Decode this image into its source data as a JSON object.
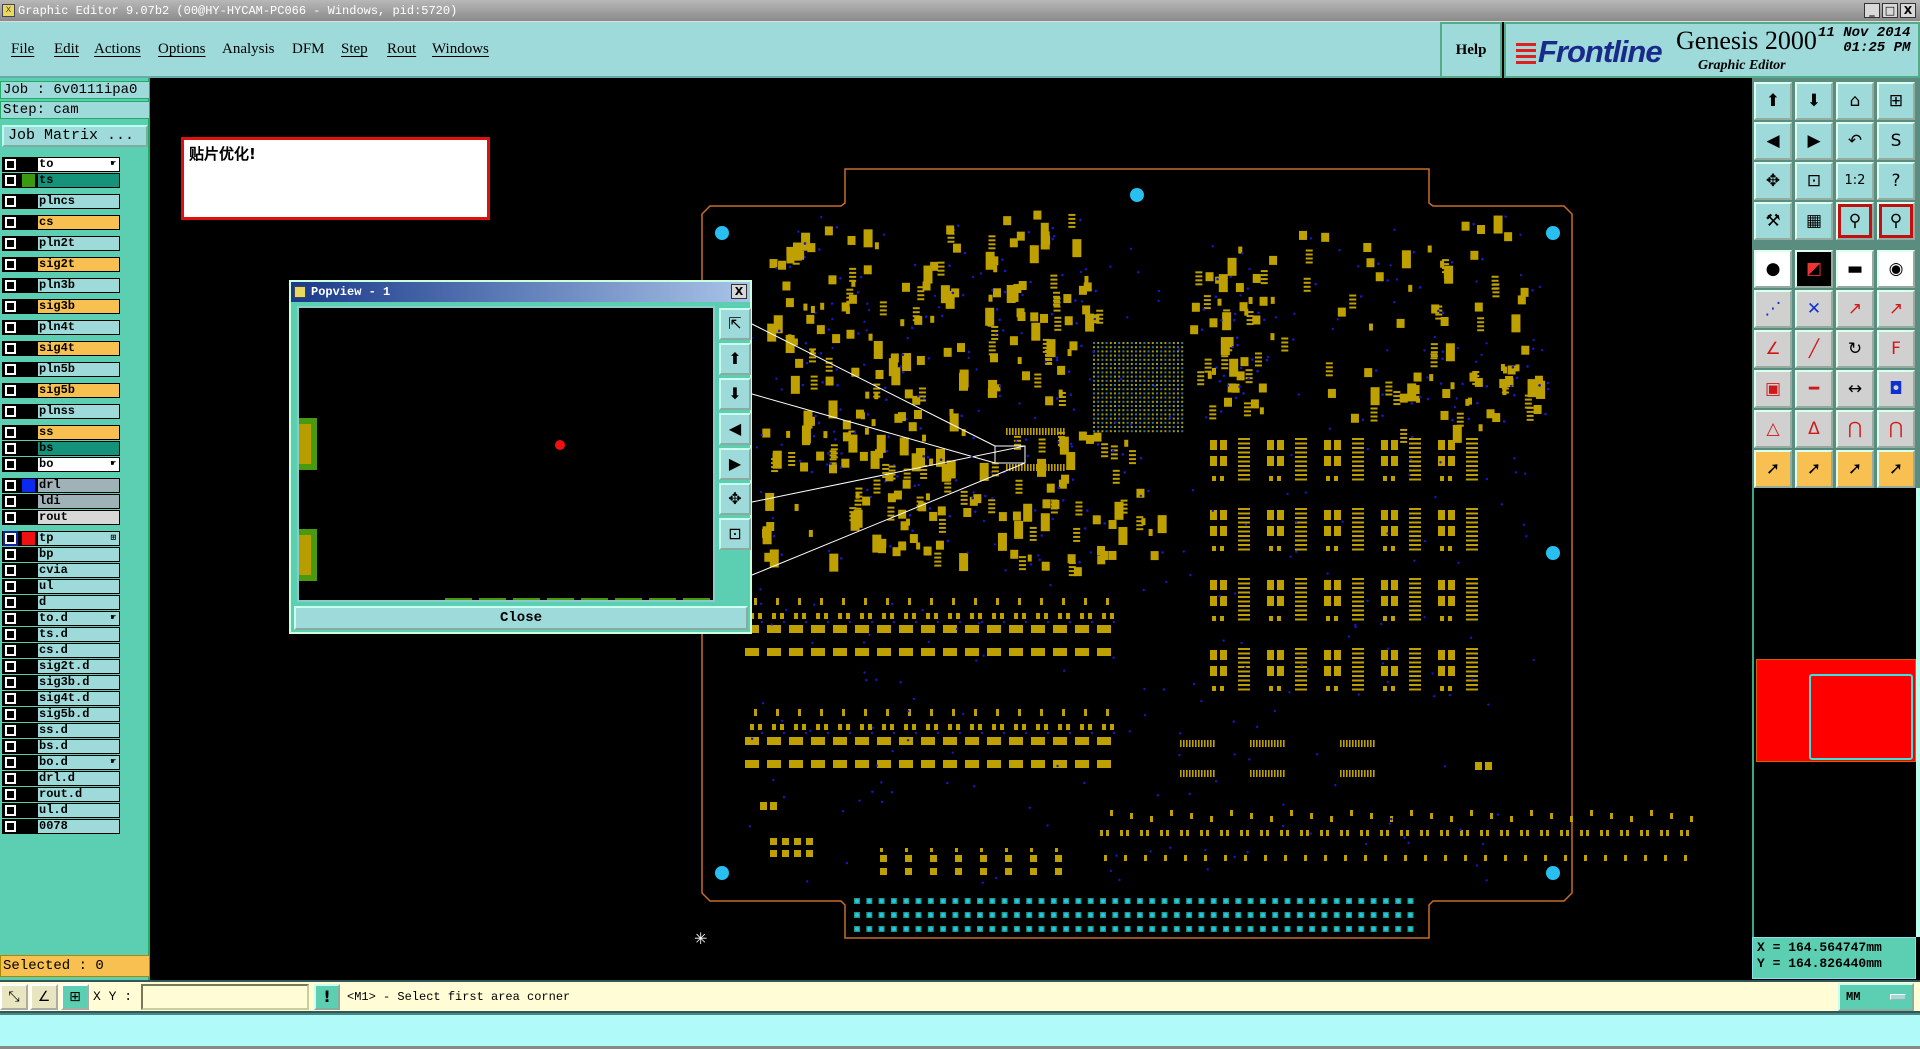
{
  "window": {
    "title": "Graphic Editor 9.07b2 (00@HY-HYCAM-PC066 - Windows, pid:5720)",
    "minimize": "_",
    "maximize": "□",
    "close": "X"
  },
  "menu": [
    "File",
    "Edit",
    "Actions",
    "Options",
    "Analysis",
    "DFM",
    "Step",
    "Rout",
    "Windows"
  ],
  "help": "Help",
  "brand": {
    "logo": "Frontline",
    "product": "Genesis 2000",
    "subtitle": "Graphic Editor",
    "date": "11 Nov 2014",
    "time": "01:25 PM"
  },
  "job": {
    "job": "Job : 6v0111ipa0",
    "step": "Step: cam",
    "matrix_button": "Job Matrix ..."
  },
  "layers": [
    {
      "name": "to",
      "bg": "#ffffff",
      "swatch": "",
      "arrow": true,
      "group": 0
    },
    {
      "name": "ts",
      "bg": "#15937a",
      "swatch": "#3a9a10",
      "group": 0
    },
    {
      "name": "plncs",
      "bg": "#9edada",
      "group": 1
    },
    {
      "name": "cs",
      "bg": "#f8c050",
      "group": 2
    },
    {
      "name": "pln2t",
      "bg": "#9edada",
      "group": 3
    },
    {
      "name": "sig2t",
      "bg": "#f8c050",
      "group": 4
    },
    {
      "name": "pln3b",
      "bg": "#9edada",
      "group": 5
    },
    {
      "name": "sig3b",
      "bg": "#f8c050",
      "group": 6
    },
    {
      "name": "pln4t",
      "bg": "#9edada",
      "group": 7
    },
    {
      "name": "sig4t",
      "bg": "#f8c050",
      "group": 8
    },
    {
      "name": "pln5b",
      "bg": "#9edada",
      "group": 9
    },
    {
      "name": "sig5b",
      "bg": "#f8c050",
      "group": 10
    },
    {
      "name": "plnss",
      "bg": "#9edada",
      "group": 11
    },
    {
      "name": "ss",
      "bg": "#f8c050",
      "group": 12
    },
    {
      "name": "bs",
      "bg": "#15937a",
      "group": 12
    },
    {
      "name": "bo",
      "bg": "#ffffff",
      "arrow": true,
      "group": 12
    },
    {
      "name": "drl",
      "bg": "#9fb2b8",
      "swatch": "#0a2af0",
      "group": 13
    },
    {
      "name": "ldi",
      "bg": "#9fb2b8",
      "group": 13
    },
    {
      "name": "rout",
      "bg": "#d8d8d8",
      "group": 13
    },
    {
      "name": "tp",
      "bg": "#9edada",
      "swatch": "#f01010",
      "affected": true,
      "group": 14
    },
    {
      "name": "bp",
      "bg": "#9edada",
      "group": 14
    },
    {
      "name": "cvia",
      "bg": "#9edada",
      "group": 14
    },
    {
      "name": "ul",
      "bg": "#9edada",
      "group": 14
    },
    {
      "name": "d",
      "bg": "#9edada",
      "group": 14
    },
    {
      "name": "to.d",
      "bg": "#9edada",
      "arrow": true,
      "group": 14
    },
    {
      "name": "ts.d",
      "bg": "#9edada",
      "group": 14
    },
    {
      "name": "cs.d",
      "bg": "#9edada",
      "group": 14
    },
    {
      "name": "sig2t.d",
      "bg": "#9edada",
      "group": 14
    },
    {
      "name": "sig3b.d",
      "bg": "#9edada",
      "group": 14
    },
    {
      "name": "sig4t.d",
      "bg": "#9edada",
      "group": 14
    },
    {
      "name": "sig5b.d",
      "bg": "#9edada",
      "group": 14
    },
    {
      "name": "ss.d",
      "bg": "#9edada",
      "group": 14
    },
    {
      "name": "bs.d",
      "bg": "#9edada",
      "group": 14
    },
    {
      "name": "bo.d",
      "bg": "#9edada",
      "arrow": true,
      "group": 14
    },
    {
      "name": "drl.d",
      "bg": "#9edada",
      "group": 14
    },
    {
      "name": "rout.d",
      "bg": "#9edada",
      "group": 14
    },
    {
      "name": "ul.d",
      "bg": "#9edada",
      "group": 14
    },
    {
      "name": "0078",
      "bg": "#9edada",
      "group": 14
    }
  ],
  "selected": "Selected : 0",
  "message": "贴片优化!",
  "popview": {
    "title": "Popview - 1",
    "close_label": "Close",
    "tools": [
      "zoom-back",
      "zoom-in",
      "zoom-out",
      "pan-left",
      "pan-right",
      "zoom-fit",
      "zoom-home"
    ]
  },
  "toolbar": [
    {
      "icon": "zoom-in",
      "g": "⬆"
    },
    {
      "icon": "zoom-out",
      "g": "⬇"
    },
    {
      "icon": "home",
      "g": "⌂"
    },
    {
      "icon": "window-xy",
      "g": "⊞"
    },
    {
      "icon": "pan-left",
      "g": "◀"
    },
    {
      "icon": "pan-right",
      "g": "▶"
    },
    {
      "icon": "undo-view",
      "g": "↶"
    },
    {
      "icon": "redraw",
      "g": "S"
    },
    {
      "icon": "zoom-fit",
      "g": "✥"
    },
    {
      "icon": "zoom-center",
      "g": "⊡"
    },
    {
      "icon": "scale-1-2",
      "g": "1:2"
    },
    {
      "icon": "help",
      "g": "?"
    },
    {
      "icon": "tools",
      "g": "⚒"
    },
    {
      "icon": "grid",
      "g": "▦"
    },
    {
      "icon": "snap-on",
      "g": "⚲"
    },
    {
      "icon": "snap-off",
      "g": "⚲"
    },
    {
      "icon": "add-feature",
      "g": "●"
    },
    {
      "icon": "measure-window",
      "g": "◩"
    },
    {
      "icon": "ruler",
      "g": "▬"
    },
    {
      "icon": "pad",
      "g": "◉"
    },
    {
      "icon": "connect",
      "g": "⋰"
    },
    {
      "icon": "delete-x",
      "g": "✕"
    },
    {
      "icon": "move-circle",
      "g": "↗"
    },
    {
      "icon": "move-dot",
      "g": "↗"
    },
    {
      "icon": "line-angle",
      "g": "∠"
    },
    {
      "icon": "line",
      "g": "╱"
    },
    {
      "icon": "arc",
      "g": "↻"
    },
    {
      "icon": "mirror",
      "g": "F"
    },
    {
      "icon": "move-pad",
      "g": "▣"
    },
    {
      "icon": "line-horizontal",
      "g": "━"
    },
    {
      "icon": "distance",
      "g": "↔"
    },
    {
      "icon": "shapes",
      "g": "◘"
    },
    {
      "icon": "triangle-a",
      "g": "△"
    },
    {
      "icon": "triangle-b",
      "g": "Δ"
    },
    {
      "icon": "arch-a",
      "g": "⋂"
    },
    {
      "icon": "arch-b",
      "g": "⋂"
    },
    {
      "icon": "select-pointer",
      "g": "➚"
    },
    {
      "icon": "select-window",
      "g": "➚"
    },
    {
      "icon": "select-polygon",
      "g": "➚"
    },
    {
      "icon": "select-net",
      "g": "➚"
    }
  ],
  "coords": {
    "x": "X = 164.564747mm",
    "y": "Y = 164.826440mm"
  },
  "status": {
    "xy_label": "X Y :",
    "xy_value": "",
    "prompt": "<M1> - Select first area corner",
    "units": "MM",
    "bang": "!"
  },
  "colors": {
    "pad": "#bea000",
    "via": "#1818c8",
    "hole": "#28c0f0",
    "outline": "#c86e28",
    "menu_bg": "#9edada",
    "panel_bg": "#5ccfb2",
    "highlight": "#f01010"
  }
}
